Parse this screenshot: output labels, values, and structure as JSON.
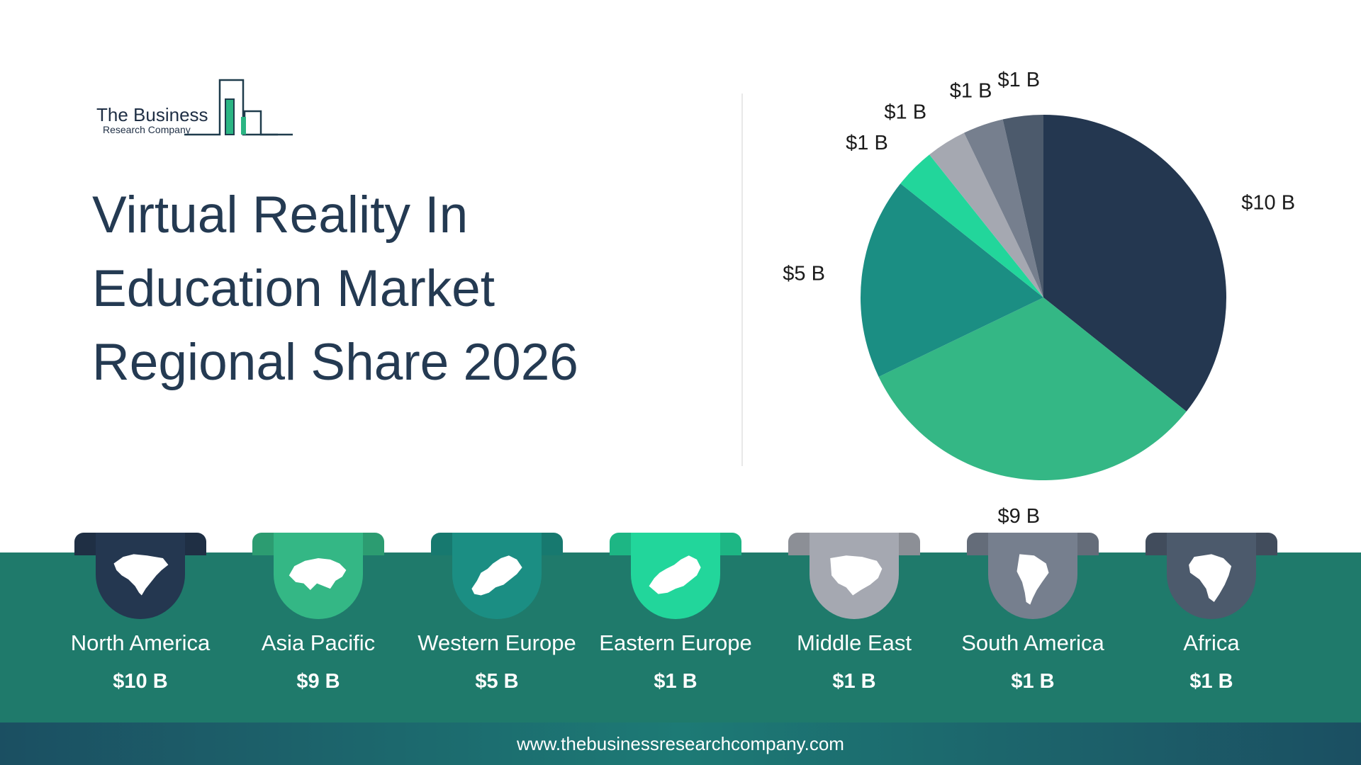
{
  "logo": {
    "line1": "The Business",
    "line2": "Research Company"
  },
  "title": {
    "lines": [
      "Virtual Reality In",
      "Education Market",
      "Regional Share 2026"
    ]
  },
  "footer": {
    "url": "www.thebusinessresearchcompany.com"
  },
  "colors": {
    "north_america": "#243750",
    "asia_pacific": "#34b785",
    "western_europe": "#1b8e83",
    "eastern_europe": "#22d69b",
    "middle_east": "#a5a8b1",
    "south_america": "#767f8e",
    "africa": "#4c5a6c",
    "band": "#1f7a6b"
  },
  "regions": [
    {
      "name": "North America",
      "value_label": "$10 B",
      "icon": "north-america-map-icon"
    },
    {
      "name": "Asia Pacific",
      "value_label": "$9 B",
      "icon": "asia-pacific-map-icon"
    },
    {
      "name": "Western Europe",
      "value_label": "$5 B",
      "icon": "western-europe-map-icon"
    },
    {
      "name": "Eastern Europe",
      "value_label": "$1 B",
      "icon": "eastern-europe-map-icon"
    },
    {
      "name": "Middle East",
      "value_label": "$1 B",
      "icon": "middle-east-map-icon"
    },
    {
      "name": "South America",
      "value_label": "$1 B",
      "icon": "south-america-map-icon"
    },
    {
      "name": "Africa",
      "value_label": "$1 B",
      "icon": "africa-map-icon"
    }
  ],
  "chart_data": {
    "type": "pie",
    "categories": [
      "North America",
      "Asia Pacific",
      "Western Europe",
      "Eastern Europe",
      "Middle East",
      "South America",
      "Africa"
    ],
    "values": [
      10,
      9,
      5,
      1,
      1,
      1,
      1
    ],
    "unit": "$ B",
    "labels": [
      "$10 B",
      "$9 B",
      "$5 B",
      "$1 B",
      "$1 B",
      "$1 B",
      "$1 B"
    ],
    "start": "12 o'clock, clockwise",
    "legend": "none"
  }
}
